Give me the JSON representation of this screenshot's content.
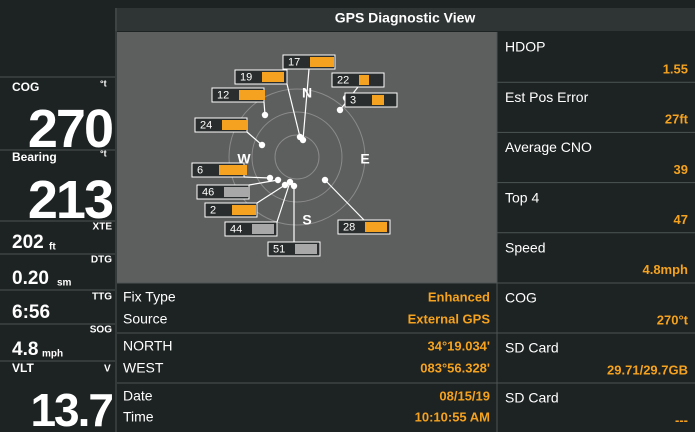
{
  "title": "GPS Diagnostic View",
  "left_panel": [
    {
      "label": "COG",
      "unit": "°t",
      "value": "270"
    },
    {
      "label": "Bearing",
      "unit": "°t",
      "value": "213"
    },
    {
      "label": "XTE",
      "value": "202",
      "unit": "ft"
    },
    {
      "label": "DTG",
      "value": "0.20",
      "unit": "sm"
    },
    {
      "label": "TTG",
      "value": "6:56"
    },
    {
      "label": "SOG",
      "value": "4.8",
      "unit": "mph"
    },
    {
      "label": "VLT",
      "unit": "V",
      "value": "13.7"
    }
  ],
  "sky_plot": {
    "compass": [
      "N",
      "E",
      "S",
      "W"
    ],
    "satellites": [
      {
        "id": "17",
        "color": "#f4a21f"
      },
      {
        "id": "19",
        "color": "#f4a21f"
      },
      {
        "id": "22",
        "color": "#f4a21f"
      },
      {
        "id": "12",
        "color": "#f4a21f"
      },
      {
        "id": "3",
        "color": "#f4a21f"
      },
      {
        "id": "24",
        "color": "#f4a21f"
      },
      {
        "id": "6",
        "color": "#f4a21f"
      },
      {
        "id": "46",
        "color": "#a8a8a8"
      },
      {
        "id": "2",
        "color": "#f4a21f"
      },
      {
        "id": "44",
        "color": "#a8a8a8"
      },
      {
        "id": "28",
        "color": "#f4a21f"
      },
      {
        "id": "51",
        "color": "#a8a8a8"
      }
    ]
  },
  "status": [
    [
      {
        "label": "Fix Type",
        "value": "Enhanced"
      },
      {
        "label": "Source",
        "value": "External GPS"
      }
    ],
    [
      {
        "label": "NORTH",
        "value": "34°19.034'"
      },
      {
        "label": "WEST",
        "value": "083°56.328'"
      }
    ],
    [
      {
        "label": "Date",
        "value": "08/15/19"
      },
      {
        "label": "Time",
        "value": "10:10:55 AM"
      }
    ]
  ],
  "right_panel": [
    {
      "label": "HDOP",
      "value": "1.55"
    },
    {
      "label": "Est Pos Error",
      "value": "27ft"
    },
    {
      "label": "Average CNO",
      "value": "39"
    },
    {
      "label": "Top 4",
      "value": "47"
    },
    {
      "label": "Speed",
      "value": "4.8mph"
    },
    {
      "label": "COG",
      "value": "270°t"
    },
    {
      "label": "SD Card",
      "value": "29.71/29.7GB"
    },
    {
      "label": "SD Card",
      "value": "---"
    }
  ]
}
